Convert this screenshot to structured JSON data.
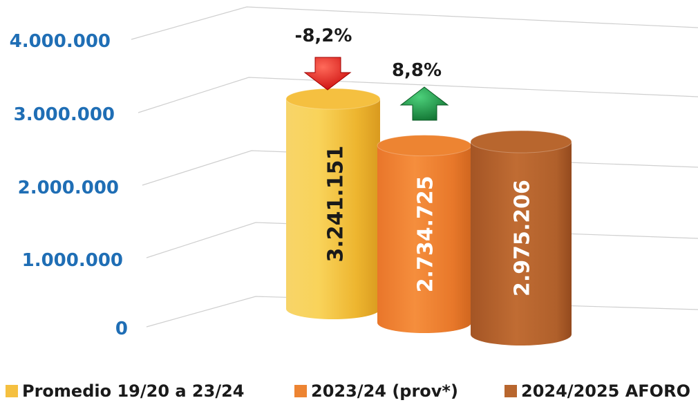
{
  "chart_data": {
    "type": "bar",
    "style": "3d-cylinder",
    "categories": [
      "Promedio 19/20 a 23/24",
      "2023/24 (prov*)",
      "2024/2025 AFORO"
    ],
    "values": [
      3241151,
      2734725,
      2975206
    ],
    "value_labels": [
      "3.241.151",
      "2.734.725",
      "2.975.206"
    ],
    "colors": [
      "#F5C040",
      "#ED8432",
      "#B8662E"
    ],
    "yticks": [
      "0",
      "1.000.000",
      "2.000.000",
      "3.000.000",
      "4.000.000"
    ],
    "ylim": [
      0,
      4000000
    ],
    "ytick_color": "#1F6EB5",
    "grid": true,
    "legend": "bottom",
    "annotations": [
      {
        "text": "-8,2%",
        "direction": "down",
        "color": "#E01010"
      },
      {
        "text": "8,8%",
        "direction": "up",
        "color": "#1E8E3E"
      }
    ]
  }
}
